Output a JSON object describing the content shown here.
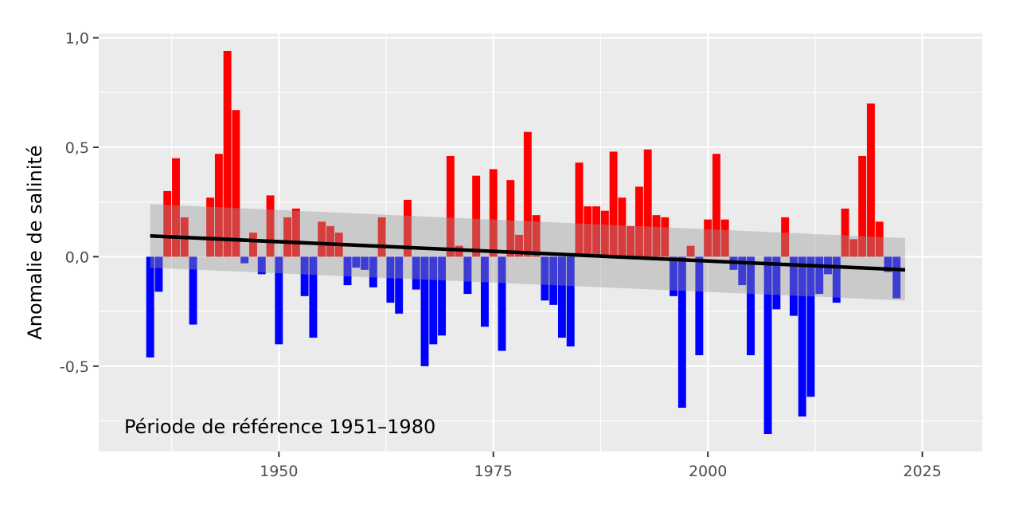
{
  "chart_data": {
    "type": "bar",
    "title": "",
    "xlabel": "",
    "ylabel": "Anomalie de salinité",
    "annotation": "Période de référence 1951–1980",
    "xlim": [
      1929,
      2032
    ],
    "ylim": [
      -0.89,
      1.02
    ],
    "x_ticks": [
      1950,
      1975,
      2000,
      2025
    ],
    "x_tick_labels": [
      "1950",
      "1975",
      "2000",
      "2025"
    ],
    "y_ticks": [
      -0.5,
      0.0,
      0.5,
      1.0
    ],
    "y_tick_labels": [
      "-0,5",
      "0,0",
      "0,5",
      "1,0"
    ],
    "grid": true,
    "colors": {
      "positive": "#ff0000",
      "negative": "#0000ff",
      "trend": "#000000",
      "confidence_band": "#999999",
      "panel": "#ebebeb",
      "grid": "#ffffff"
    },
    "trend": {
      "start": [
        1935,
        0.095
      ],
      "end": [
        2023,
        -0.06
      ]
    },
    "confidence_band": {
      "upper_start": 0.24,
      "upper_end": 0.085,
      "lower_start": -0.05,
      "lower_end": -0.2
    },
    "years": [
      1935,
      1936,
      1937,
      1938,
      1939,
      1940,
      1941,
      1942,
      1943,
      1944,
      1945,
      1946,
      1947,
      1948,
      1949,
      1950,
      1951,
      1952,
      1953,
      1954,
      1955,
      1956,
      1957,
      1958,
      1959,
      1960,
      1961,
      1962,
      1963,
      1964,
      1965,
      1966,
      1967,
      1968,
      1969,
      1970,
      1971,
      1972,
      1973,
      1974,
      1975,
      1976,
      1977,
      1978,
      1979,
      1980,
      1981,
      1982,
      1983,
      1984,
      1985,
      1986,
      1987,
      1988,
      1989,
      1990,
      1991,
      1992,
      1993,
      1994,
      1995,
      1996,
      1997,
      1998,
      1999,
      2000,
      2001,
      2002,
      2003,
      2004,
      2005,
      2006,
      2007,
      2008,
      2009,
      2010,
      2011,
      2012,
      2013,
      2014,
      2015,
      2016,
      2017,
      2018,
      2019,
      2020,
      2021,
      2022,
      2023
    ],
    "values": [
      -0.46,
      -0.16,
      0.3,
      0.45,
      0.18,
      -0.31,
      0.0,
      0.27,
      0.47,
      0.94,
      0.67,
      -0.03,
      0.11,
      -0.08,
      0.28,
      -0.4,
      0.18,
      0.22,
      -0.18,
      -0.37,
      0.16,
      0.14,
      0.11,
      -0.13,
      -0.05,
      -0.06,
      -0.14,
      0.18,
      -0.21,
      -0.26,
      0.26,
      -0.15,
      -0.5,
      -0.4,
      -0.36,
      0.46,
      0.05,
      -0.17,
      0.37,
      -0.32,
      0.4,
      -0.43,
      0.35,
      0.1,
      0.57,
      0.19,
      -0.2,
      -0.22,
      -0.37,
      -0.41,
      0.43,
      0.23,
      0.23,
      0.21,
      0.48,
      0.27,
      0.14,
      0.32,
      0.49,
      0.19,
      0.18,
      -0.18,
      -0.69,
      0.05,
      -0.45,
      0.17,
      0.47,
      0.17,
      -0.06,
      -0.13,
      -0.45,
      0.0,
      -0.81,
      -0.24,
      0.18,
      -0.27,
      -0.73,
      -0.64,
      -0.17,
      -0.08,
      -0.21,
      0.22,
      0.08,
      0.46,
      0.7,
      0.16,
      -0.07,
      -0.19,
      0.0
    ]
  }
}
